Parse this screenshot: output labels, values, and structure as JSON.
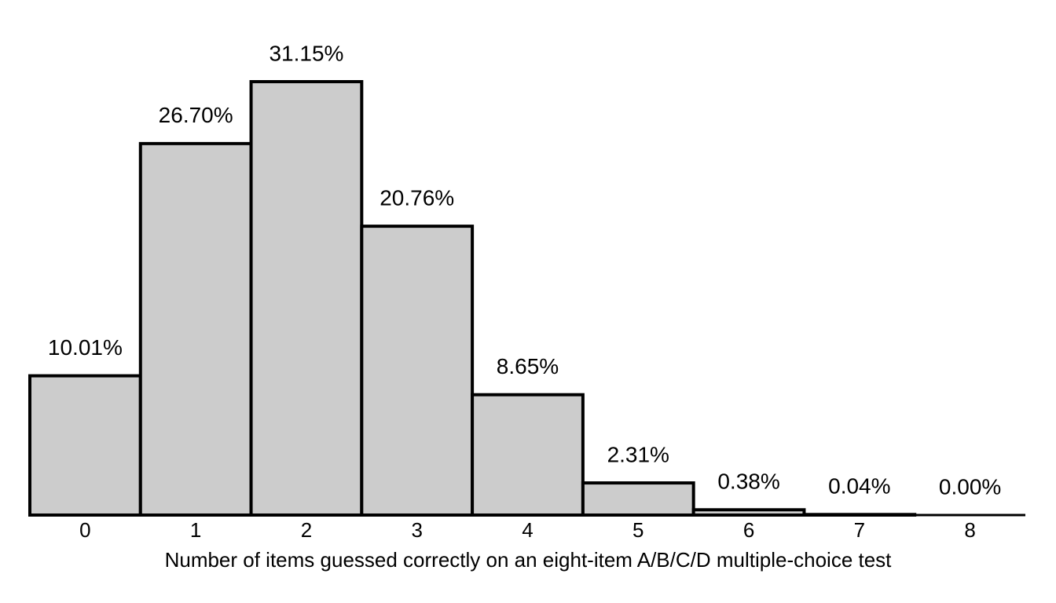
{
  "chart_data": {
    "type": "bar",
    "x_label": "Number of items guessed correctly on an eight-item A/B/C/D multiple-choice test",
    "categories": [
      "0",
      "1",
      "2",
      "3",
      "4",
      "5",
      "6",
      "7",
      "8"
    ],
    "values": [
      10.01,
      26.7,
      31.15,
      20.76,
      8.65,
      2.31,
      0.38,
      0.04,
      0.0
    ],
    "value_labels": [
      "10.01%",
      "26.70%",
      "31.15%",
      "20.76%",
      "8.65%",
      "2.31%",
      "0.38%",
      "0.04%",
      "0.00%"
    ],
    "color": "#cccccc"
  }
}
